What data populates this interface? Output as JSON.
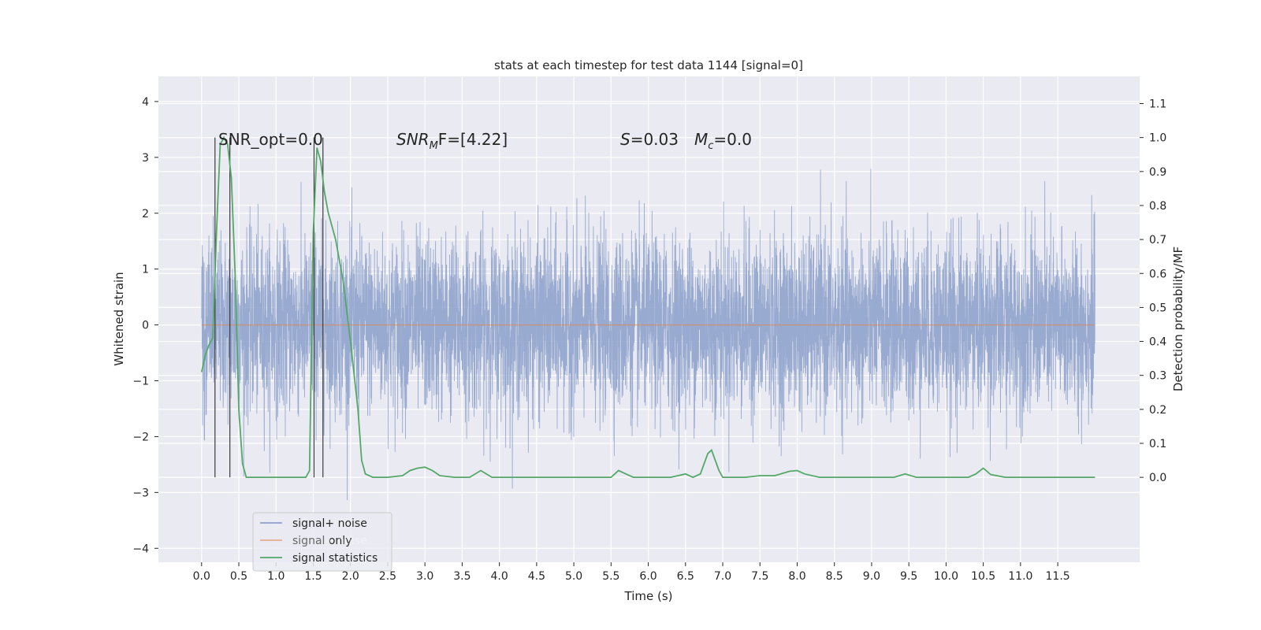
{
  "chart_data": {
    "type": "line",
    "title": "stats at each timestep for test data 1144 [signal=0]",
    "xlabel": "Time (s)",
    "ylabel": "Whitened strain",
    "y2label": "Detection probability/MF",
    "xlim": [
      -0.58,
      12.6
    ],
    "ylim": [
      -4.25,
      4.45
    ],
    "y2lim": [
      -0.25,
      1.18
    ],
    "xticks": [
      "0.0",
      "0.5",
      "1.0",
      "1.5",
      "2.0",
      "2.5",
      "3.0",
      "3.5",
      "4.0",
      "4.5",
      "5.0",
      "5.5",
      "6.0",
      "6.5",
      "7.0",
      "7.5",
      "8.0",
      "8.5",
      "9.0",
      "9.5",
      "10.0",
      "10.5",
      "11.0",
      "11.5"
    ],
    "yticks": [
      "−4",
      "−3",
      "−2",
      "−1",
      "0",
      "1",
      "2",
      "3",
      "4"
    ],
    "y2ticks": [
      "0.0",
      "0.1",
      "0.2",
      "0.3",
      "0.4",
      "0.5",
      "0.6",
      "0.7",
      "0.8",
      "0.9",
      "1.0",
      "1.1"
    ],
    "annotations": {
      "snr_opt": "SNR_opt=0.0",
      "snr_mf_prefix": "SNR",
      "snr_mf_sub": "M",
      "snr_mf_suffix": "F=[4.22]",
      "s_var": "S",
      "s_value": "=0.03",
      "mc_var": "M",
      "mc_sub": "c",
      "mc_value": "=0.0"
    },
    "legend": {
      "placement": "lower-left",
      "entries": [
        "signal+ noise",
        "signal only",
        "signal statistics"
      ],
      "hidden_text": "signal+ noise"
    },
    "series": [
      {
        "name": "signal+ noise",
        "color": "#8fa3cc",
        "x_range": [
          0.0,
          12.0
        ],
        "envelope": [
          -1.9,
          1.9
        ]
      },
      {
        "name": "signal only",
        "color": "#dd8452",
        "values_constant": 0.0
      },
      {
        "name": "signal statistics",
        "color": "#55a868",
        "axis": "right",
        "x": [
          0.0,
          0.05,
          0.1,
          0.15,
          0.2,
          0.25,
          0.3,
          0.35,
          0.4,
          0.45,
          0.5,
          0.55,
          0.6,
          0.7,
          0.8,
          1.0,
          1.2,
          1.4,
          1.45,
          1.5,
          1.55,
          1.6,
          1.65,
          1.7,
          1.8,
          1.9,
          2.0,
          2.1,
          2.15,
          2.2,
          2.3,
          2.5,
          2.7,
          2.8,
          2.9,
          3.0,
          3.1,
          3.2,
          3.4,
          3.6,
          3.75,
          3.9,
          4.0,
          4.5,
          5.0,
          5.5,
          5.55,
          5.6,
          5.7,
          5.8,
          6.0,
          6.3,
          6.5,
          6.6,
          6.7,
          6.75,
          6.8,
          6.85,
          6.9,
          6.95,
          7.0,
          7.1,
          7.3,
          7.5,
          7.7,
          7.9,
          8.0,
          8.1,
          8.3,
          8.5,
          9.0,
          9.3,
          9.45,
          9.6,
          9.8,
          10.0,
          10.3,
          10.4,
          10.5,
          10.6,
          10.8,
          11.0,
          11.5,
          12.0
        ],
        "values": [
          0.31,
          0.36,
          0.39,
          0.41,
          0.72,
          0.98,
          1.0,
          0.98,
          0.88,
          0.6,
          0.2,
          0.04,
          0.0,
          0.0,
          0.0,
          0.0,
          0.0,
          0.0,
          0.02,
          0.72,
          0.97,
          0.93,
          0.84,
          0.78,
          0.7,
          0.58,
          0.4,
          0.2,
          0.05,
          0.01,
          0.0,
          0.0,
          0.005,
          0.02,
          0.027,
          0.03,
          0.02,
          0.005,
          0.0,
          0.0,
          0.02,
          0.0,
          0.0,
          0.0,
          0.0,
          0.0,
          0.01,
          0.02,
          0.01,
          0.0,
          0.0,
          0.0,
          0.01,
          0.0,
          0.01,
          0.04,
          0.07,
          0.08,
          0.05,
          0.02,
          0.0,
          0.0,
          0.0,
          0.005,
          0.005,
          0.018,
          0.02,
          0.01,
          0.0,
          0.0,
          0.0,
          0.0,
          0.01,
          0.0,
          0.0,
          0.0,
          0.0,
          0.01,
          0.027,
          0.008,
          0.0,
          0.0,
          0.0,
          0.0
        ]
      }
    ],
    "vertical_markers": [
      0.18,
      0.38,
      1.51,
      1.63
    ],
    "grid": true
  }
}
